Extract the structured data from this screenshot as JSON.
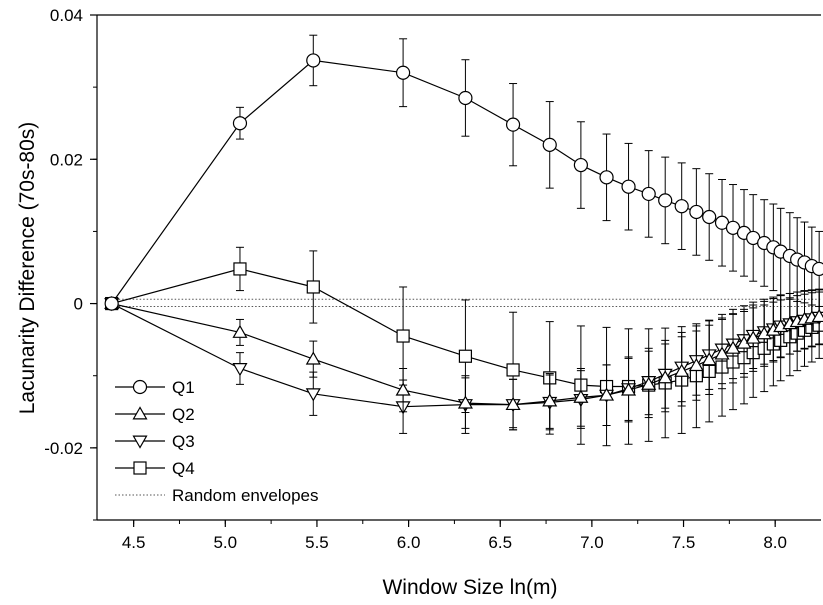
{
  "chart_data": {
    "type": "line",
    "title": "",
    "xlabel": "Window Size ln(m)",
    "ylabel": "Lacunarity Difference (70s-80s)",
    "xlim": [
      4.3,
      8.25
    ],
    "ylim": [
      -0.03,
      0.04
    ],
    "x_ticks": [
      {
        "value": 4.5,
        "label": "4.5"
      },
      {
        "value": 5.0,
        "label": "5.0"
      },
      {
        "value": 5.5,
        "label": "5.5"
      },
      {
        "value": 6.0,
        "label": "6.0"
      },
      {
        "value": 6.5,
        "label": "6.5"
      },
      {
        "value": 7.0,
        "label": "7.0"
      },
      {
        "value": 7.5,
        "label": "7.5"
      },
      {
        "value": 8.0,
        "label": "8.0"
      }
    ],
    "y_ticks": [
      {
        "value": 0.04,
        "label": "0.04"
      },
      {
        "value": 0.02,
        "label": "0.02"
      },
      {
        "value": 0,
        "label": "0"
      },
      {
        "value": -0.02,
        "label": "-0.02"
      }
    ],
    "x": [
      4.38,
      5.08,
      5.48,
      5.97,
      6.31,
      6.57,
      6.77,
      6.94,
      7.08,
      7.2,
      7.31,
      7.4,
      7.49,
      7.57,
      7.64,
      7.71,
      7.77,
      7.83,
      7.88,
      7.94,
      7.99,
      8.03,
      8.08,
      8.12,
      8.16,
      8.2,
      8.24
    ],
    "series": [
      {
        "name": "Q1",
        "marker": "circle",
        "y": [
          0,
          0.025,
          0.0337,
          0.032,
          0.0285,
          0.0248,
          0.022,
          0.0192,
          0.0175,
          0.0162,
          0.0152,
          0.0143,
          0.0135,
          0.0127,
          0.012,
          0.0112,
          0.0105,
          0.0098,
          0.0091,
          0.0084,
          0.0078,
          0.0072,
          0.0066,
          0.0061,
          0.0057,
          0.0052,
          0.0048
        ],
        "err": [
          0,
          0.0022,
          0.0035,
          0.0047,
          0.0053,
          0.0057,
          0.006,
          0.006,
          0.006,
          0.006,
          0.006,
          0.006,
          0.006,
          0.006,
          0.006,
          0.006,
          0.006,
          0.006,
          0.006,
          0.006,
          0.006,
          0.006,
          0.006,
          0.0058,
          0.0056,
          0.0054,
          0.0052
        ]
      },
      {
        "name": "Q2",
        "marker": "triangle-up",
        "y": [
          0,
          -0.004,
          -0.0077,
          -0.012,
          -0.0138,
          -0.014,
          -0.0135,
          -0.013,
          -0.0127,
          -0.012,
          -0.0112,
          -0.0103,
          -0.0094,
          -0.0086,
          -0.0078,
          -0.007,
          -0.0062,
          -0.0055,
          -0.0048,
          -0.0042,
          -0.0037,
          -0.0032,
          -0.0028,
          -0.0025,
          -0.0022,
          -0.002,
          -0.0018
        ],
        "err": [
          0,
          0.0018,
          0.0025,
          0.003,
          0.0035,
          0.0035,
          0.0038,
          0.004,
          0.0042,
          0.0044,
          0.0046,
          0.0047,
          0.0048,
          0.0048,
          0.0048,
          0.0048,
          0.0048,
          0.0047,
          0.0046,
          0.0045,
          0.0044,
          0.0043,
          0.0042,
          0.0041,
          0.004,
          0.0039,
          0.0038
        ]
      },
      {
        "name": "Q3",
        "marker": "triangle-down",
        "y": [
          0,
          -0.009,
          -0.0125,
          -0.0143,
          -0.014,
          -0.014,
          -0.0137,
          -0.0133,
          -0.0127,
          -0.0118,
          -0.0108,
          -0.0098,
          -0.0088,
          -0.0079,
          -0.0071,
          -0.0063,
          -0.0056,
          -0.005,
          -0.0044,
          -0.0039,
          -0.0035,
          -0.0031,
          -0.0028,
          -0.0025,
          -0.0023,
          -0.0021,
          -0.0019
        ],
        "err": [
          0,
          0.0022,
          0.003,
          0.0037,
          0.004,
          0.0035,
          0.0038,
          0.004,
          0.0042,
          0.0044,
          0.0046,
          0.0047,
          0.0048,
          0.0048,
          0.0048,
          0.0048,
          0.0048,
          0.0047,
          0.0046,
          0.0045,
          0.0044,
          0.0043,
          0.0042,
          0.0041,
          0.004,
          0.0039,
          0.0038
        ]
      },
      {
        "name": "Q4",
        "marker": "square",
        "y": [
          0,
          0.0048,
          0.0023,
          -0.0045,
          -0.0073,
          -0.0092,
          -0.0103,
          -0.0113,
          -0.0115,
          -0.0115,
          -0.0113,
          -0.011,
          -0.0106,
          -0.01,
          -0.0094,
          -0.0088,
          -0.0081,
          -0.0075,
          -0.0068,
          -0.0062,
          -0.0056,
          -0.0051,
          -0.0046,
          -0.0041,
          -0.0037,
          -0.0033,
          -0.003
        ],
        "err": [
          0,
          0.003,
          0.005,
          0.0068,
          0.0078,
          0.008,
          0.0078,
          0.0082,
          0.0082,
          0.008,
          0.0078,
          0.0076,
          0.0074,
          0.0072,
          0.007,
          0.0068,
          0.0066,
          0.0064,
          0.0062,
          0.006,
          0.0058,
          0.0056,
          0.0054,
          0.0052,
          0.005,
          0.0048,
          0.0046
        ]
      }
    ],
    "envelopes": {
      "name": "Random envelopes",
      "upper": 0.0006,
      "lower": -0.0004
    },
    "grid": false,
    "legend_position": "bottom-left"
  }
}
